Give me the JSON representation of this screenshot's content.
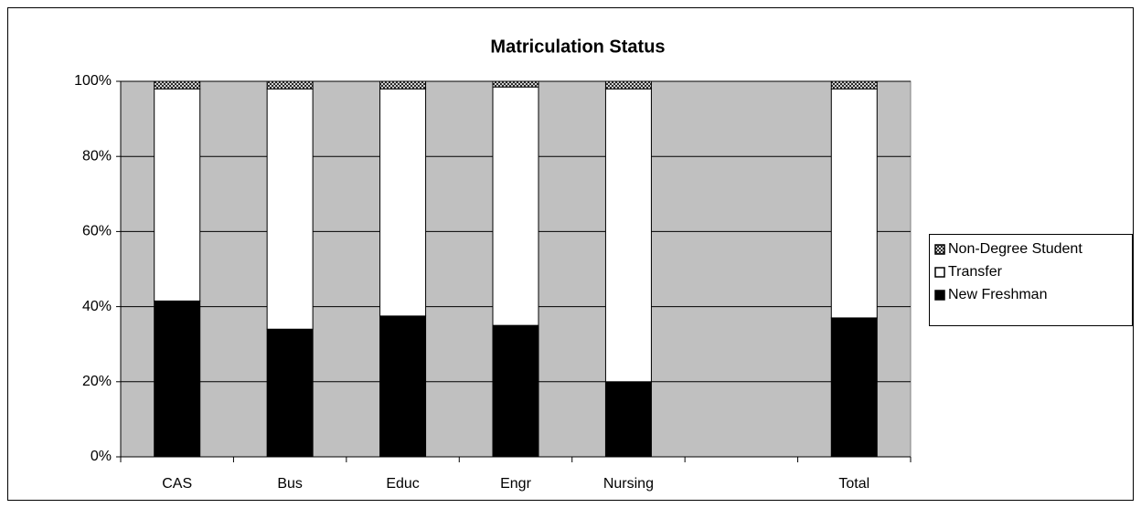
{
  "chart_data": {
    "type": "stacked_bar",
    "title": "Matriculation Status",
    "categories": [
      "CAS",
      "Bus",
      "Educ",
      "Engr",
      "Nursing",
      null,
      "Total"
    ],
    "series": [
      {
        "name": "New Freshman",
        "color": "#000000",
        "values": [
          41.5,
          34,
          37.5,
          35,
          20,
          null,
          37
        ]
      },
      {
        "name": "Transfer",
        "color": "#ffffff",
        "values": [
          56.5,
          64,
          60.5,
          63.5,
          78,
          null,
          61
        ]
      },
      {
        "name": "Non-Degree Student",
        "color": "#808080",
        "pattern": "crosshatch",
        "values": [
          2,
          2,
          2,
          1.5,
          2,
          null,
          2
        ]
      }
    ],
    "ylim": [
      0,
      100
    ],
    "yticks": [
      {
        "value": 0,
        "label": "0%"
      },
      {
        "value": 20,
        "label": "20%"
      },
      {
        "value": 40,
        "label": "40%"
      },
      {
        "value": 60,
        "label": "60%"
      },
      {
        "value": 80,
        "label": "80%"
      },
      {
        "value": 100,
        "label": "100%"
      }
    ],
    "grid": true,
    "plot_background": "#c0c0c0",
    "legend": "right"
  }
}
